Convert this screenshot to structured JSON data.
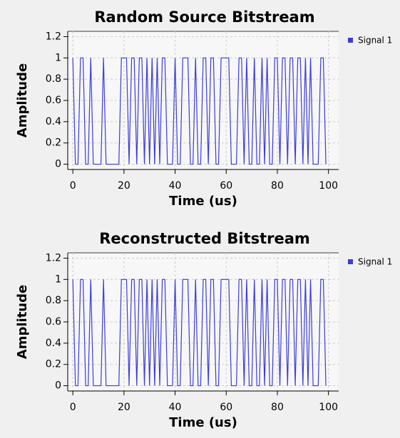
{
  "chart_data": [
    {
      "type": "line",
      "title": "Random Source Bitstream",
      "xlabel": "Time (us)",
      "ylabel": "Amplitude",
      "x": [
        0,
        1,
        2,
        3,
        4,
        5,
        6,
        7,
        8,
        9,
        10,
        11,
        12,
        13,
        14,
        15,
        16,
        17,
        18,
        19,
        20,
        21,
        22,
        23,
        24,
        25,
        26,
        27,
        28,
        29,
        30,
        31,
        32,
        33,
        34,
        35,
        36,
        37,
        38,
        39,
        40,
        41,
        42,
        43,
        44,
        45,
        46,
        47,
        48,
        49,
        50,
        51,
        52,
        53,
        54,
        55,
        56,
        57,
        58,
        59,
        60,
        61,
        62,
        63,
        64,
        65,
        66,
        67,
        68,
        69,
        70,
        71,
        72,
        73,
        74,
        75,
        76,
        77,
        78,
        79,
        80,
        81,
        82,
        83,
        84,
        85,
        86,
        87,
        88,
        89,
        90,
        91,
        92,
        93,
        94,
        95,
        96,
        97,
        98,
        99
      ],
      "series": [
        {
          "name": "Signal 1",
          "color": "#3c3cdc",
          "values": [
            1,
            0,
            0,
            1,
            1,
            0,
            0,
            1,
            0,
            0,
            0,
            0,
            1,
            0,
            0,
            0,
            0,
            0,
            0,
            1,
            1,
            1,
            0,
            1,
            1,
            0,
            1,
            1,
            0,
            1,
            0,
            1,
            0,
            1,
            0,
            1,
            1,
            0,
            0,
            0,
            1,
            0,
            0,
            1,
            1,
            1,
            0,
            0,
            1,
            0,
            0,
            1,
            1,
            0,
            1,
            1,
            0,
            0,
            1,
            1,
            1,
            1,
            0,
            0,
            0,
            1,
            1,
            0,
            1,
            0,
            0,
            1,
            0,
            0,
            1,
            0,
            1,
            0,
            0,
            1,
            1,
            0,
            1,
            1,
            0,
            1,
            1,
            0,
            1,
            1,
            0,
            1,
            0,
            1,
            0,
            0,
            0,
            1,
            1,
            0
          ]
        }
      ],
      "xlim": [
        -2,
        104
      ],
      "ylim": [
        -0.05,
        1.25
      ],
      "xticks": [
        0,
        20,
        40,
        60,
        80,
        100
      ],
      "yticks": [
        0,
        0.2,
        0.4,
        0.6,
        0.8,
        1,
        1.2
      ],
      "grid": true
    },
    {
      "type": "line",
      "title": "Reconstructed Bitstream",
      "xlabel": "Time (us)",
      "ylabel": "Amplitude",
      "x": [
        0,
        1,
        2,
        3,
        4,
        5,
        6,
        7,
        8,
        9,
        10,
        11,
        12,
        13,
        14,
        15,
        16,
        17,
        18,
        19,
        20,
        21,
        22,
        23,
        24,
        25,
        26,
        27,
        28,
        29,
        30,
        31,
        32,
        33,
        34,
        35,
        36,
        37,
        38,
        39,
        40,
        41,
        42,
        43,
        44,
        45,
        46,
        47,
        48,
        49,
        50,
        51,
        52,
        53,
        54,
        55,
        56,
        57,
        58,
        59,
        60,
        61,
        62,
        63,
        64,
        65,
        66,
        67,
        68,
        69,
        70,
        71,
        72,
        73,
        74,
        75,
        76,
        77,
        78,
        79,
        80,
        81,
        82,
        83,
        84,
        85,
        86,
        87,
        88,
        89,
        90,
        91,
        92,
        93,
        94,
        95,
        96,
        97,
        98,
        99
      ],
      "series": [
        {
          "name": "Signal 1",
          "color": "#3c3cdc",
          "values": [
            1,
            0,
            0,
            1,
            1,
            0,
            0,
            1,
            0,
            0,
            0,
            0,
            1,
            0,
            0,
            0,
            0,
            0,
            0,
            1,
            1,
            1,
            0,
            1,
            1,
            0,
            1,
            1,
            0,
            1,
            0,
            1,
            0,
            1,
            0,
            1,
            1,
            0,
            0,
            0,
            1,
            0,
            0,
            1,
            1,
            1,
            0,
            0,
            1,
            0,
            0,
            1,
            1,
            0,
            1,
            1,
            0,
            0,
            1,
            1,
            1,
            1,
            0,
            0,
            0,
            1,
            1,
            0,
            1,
            0,
            0,
            1,
            0,
            0,
            1,
            0,
            1,
            0,
            0,
            1,
            1,
            0,
            1,
            1,
            0,
            1,
            1,
            0,
            1,
            1,
            0,
            1,
            0,
            1,
            0,
            0,
            0,
            1,
            1,
            0
          ]
        }
      ],
      "xlim": [
        -2,
        104
      ],
      "ylim": [
        -0.05,
        1.25
      ],
      "xticks": [
        0,
        20,
        40,
        60,
        80,
        100
      ],
      "yticks": [
        0,
        0.2,
        0.4,
        0.6,
        0.8,
        1,
        1.2
      ],
      "grid": true
    }
  ]
}
